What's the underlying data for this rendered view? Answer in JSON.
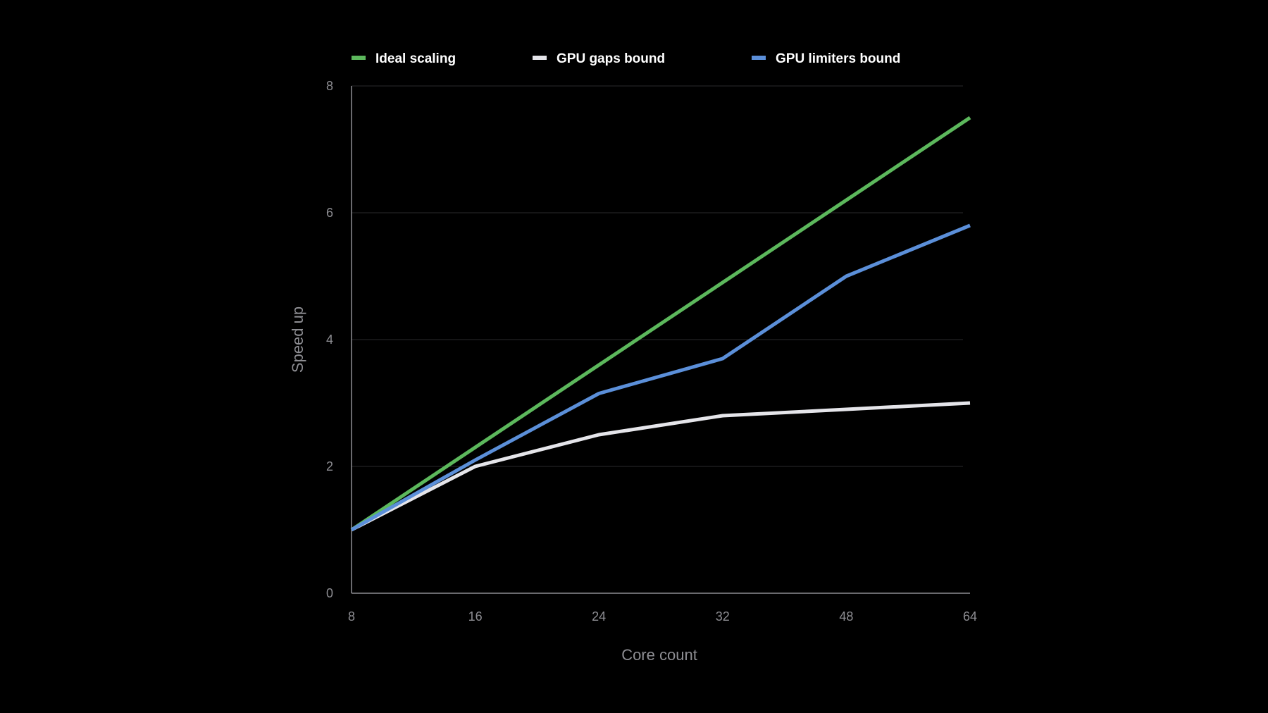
{
  "chart_data": {
    "type": "line",
    "x": [
      "8",
      "16",
      "24",
      "32",
      "48",
      "64"
    ],
    "xlabel": "Core count",
    "ylabel": "Speed up",
    "ylim": [
      0,
      8
    ],
    "yticks": [
      0,
      2,
      4,
      6,
      8
    ],
    "grid": true,
    "legend_position": "top",
    "series": [
      {
        "name": "Ideal scaling",
        "color": "#5cb85c",
        "values": [
          1.0,
          2.3,
          3.6,
          4.9,
          6.2,
          7.5
        ]
      },
      {
        "name": "GPU gaps bound",
        "color": "#e5e5ea",
        "values": [
          1.0,
          2.0,
          2.5,
          2.8,
          2.9,
          3.0
        ]
      },
      {
        "name": "GPU limiters bound",
        "color": "#5b8fd9",
        "values": [
          1.0,
          2.1,
          3.15,
          3.7,
          5.0,
          5.8
        ]
      }
    ]
  }
}
